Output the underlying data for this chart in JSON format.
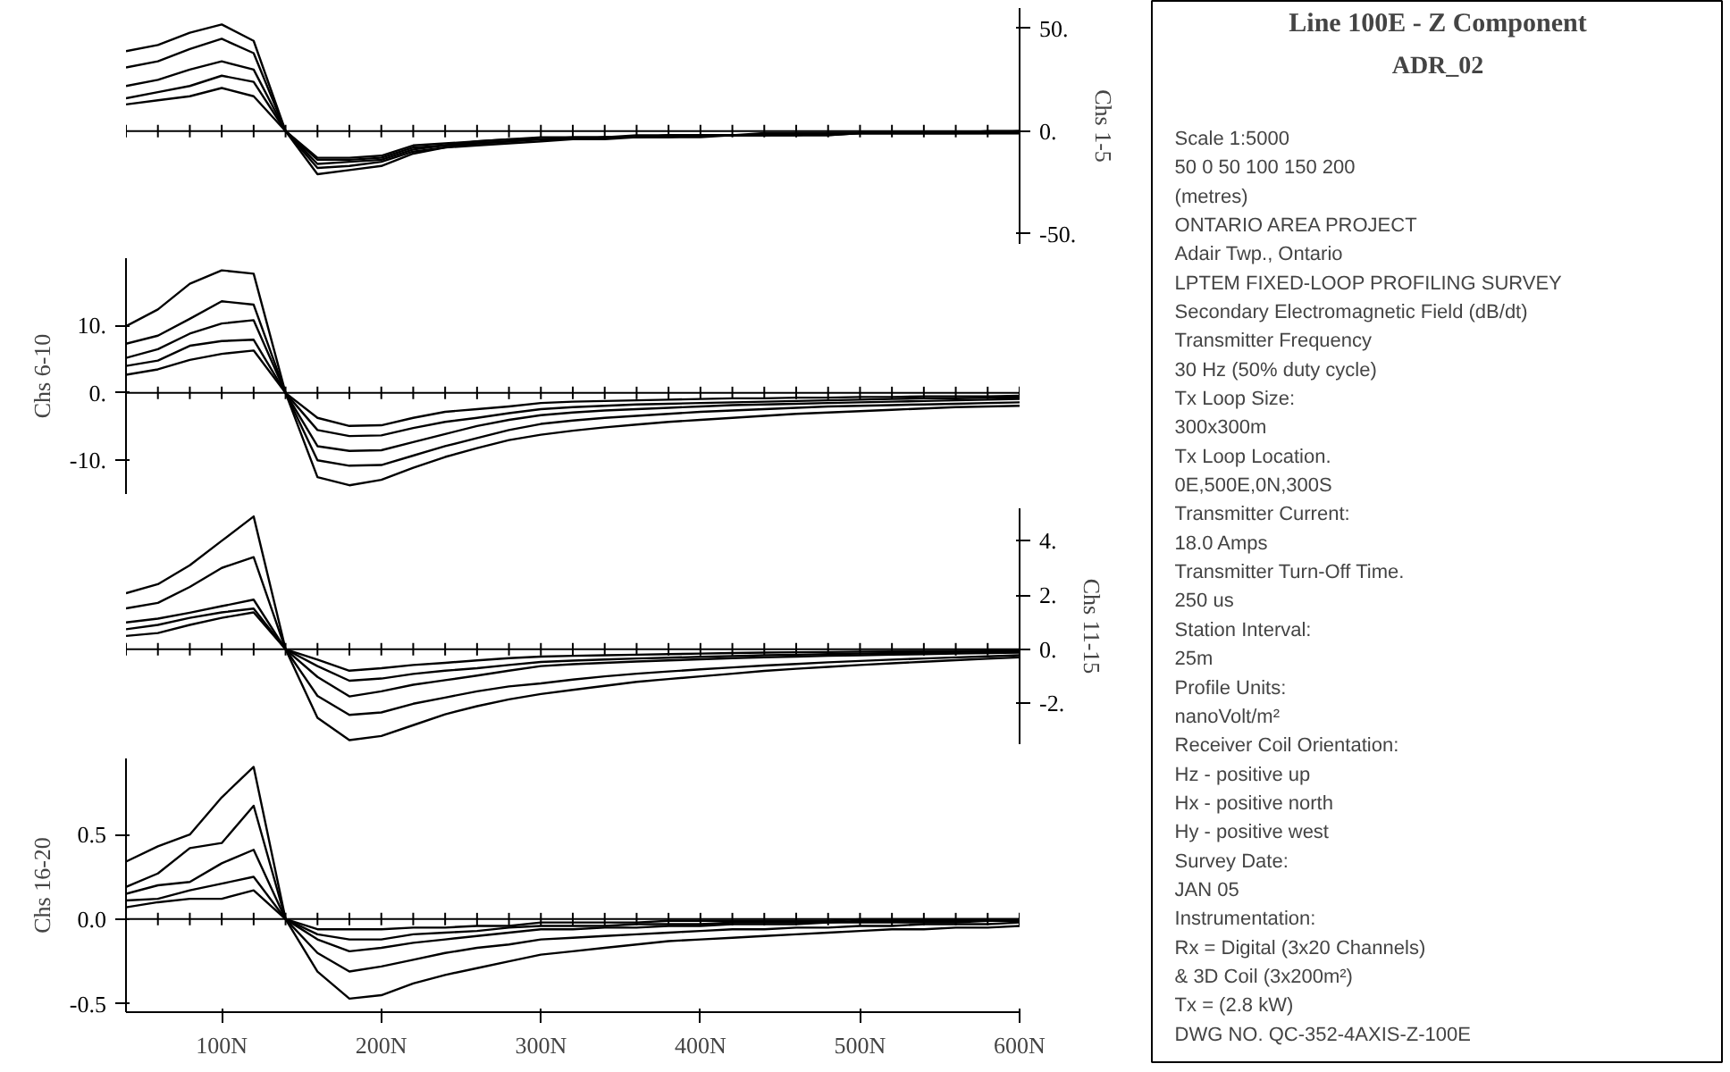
{
  "chart_data": [
    {
      "type": "line",
      "ylabel": "Chs 1-5",
      "x": [
        40,
        60,
        80,
        100,
        120,
        140,
        160,
        180,
        200,
        220,
        240,
        260,
        280,
        300,
        320,
        340,
        360,
        380,
        400,
        420,
        440,
        460,
        480,
        500,
        520,
        540,
        560,
        580,
        600
      ],
      "xlim": [
        40,
        600
      ],
      "ylim": [
        -55,
        60
      ],
      "yticks": [
        {
          "value": 50,
          "label": "50."
        },
        {
          "value": 0,
          "label": "0."
        },
        {
          "value": -50,
          "label": "-50."
        }
      ],
      "tick_labels": "y",
      "ref_lines": [
        {
          "axis": "y",
          "value": 0
        }
      ],
      "series": [
        {
          "color": "#000000",
          "values": [
            39,
            42,
            48,
            52,
            44,
            0,
            -21,
            -19,
            -17,
            -11,
            -8,
            -7,
            -6,
            -5,
            -4,
            -4,
            -3,
            -3,
            -3,
            -2,
            -2,
            -2,
            -2,
            -1,
            -1,
            -1,
            -1,
            -1,
            -1
          ]
        },
        {
          "color": "#000000",
          "values": [
            31,
            34,
            40,
            45,
            38,
            0,
            -18,
            -17,
            -15,
            -10,
            -8,
            -6,
            -5,
            -4,
            -4,
            -3,
            -3,
            -3,
            -2,
            -2,
            -2,
            -2,
            -2,
            -1,
            -1,
            -1,
            -1,
            -1,
            -1
          ]
        },
        {
          "color": "#000000",
          "values": [
            22,
            25,
            30,
            34,
            30,
            0,
            -16,
            -15,
            -14,
            -9,
            -7,
            -6,
            -5,
            -4,
            -4,
            -3,
            -3,
            -2,
            -2,
            -2,
            -2,
            -2,
            -1,
            -1,
            -1,
            -1,
            -1,
            -1,
            -1
          ]
        },
        {
          "color": "#000000",
          "values": [
            16,
            19,
            22,
            27,
            24,
            0,
            -14,
            -14,
            -13,
            -8,
            -7,
            -5,
            -4,
            -4,
            -3,
            -3,
            -3,
            -2,
            -2,
            -2,
            -2,
            -1,
            -1,
            -1,
            -1,
            -1,
            -1,
            -1,
            0
          ]
        },
        {
          "color": "#000000",
          "values": [
            13,
            15,
            17,
            21,
            17,
            0,
            -13,
            -13,
            -12,
            -7,
            -6,
            -5,
            -4,
            -3,
            -3,
            -3,
            -2,
            -2,
            -2,
            -2,
            -1,
            -1,
            -1,
            -1,
            -1,
            -1,
            -1,
            0,
            0
          ]
        }
      ]
    },
    {
      "type": "line",
      "ylabel": "Chs 6-10",
      "x": [
        40,
        60,
        80,
        100,
        120,
        140,
        160,
        180,
        200,
        220,
        240,
        260,
        280,
        300,
        320,
        340,
        360,
        380,
        400,
        420,
        440,
        460,
        480,
        500,
        520,
        540,
        560,
        580,
        600
      ],
      "xlim": [
        40,
        600
      ],
      "ylim": [
        -15,
        20
      ],
      "yticks": [
        {
          "value": 10,
          "label": "10."
        },
        {
          "value": 0,
          "label": "0."
        },
        {
          "value": -10,
          "label": "-10."
        }
      ],
      "tick_labels": "y",
      "ref_lines": [
        {
          "axis": "y",
          "value": 0
        }
      ],
      "series": [
        {
          "color": "#000000",
          "values": [
            9.9,
            12.4,
            16.2,
            18.2,
            17.7,
            0,
            -12.5,
            -13.7,
            -12.9,
            -11.1,
            -9.5,
            -8.2,
            -7,
            -6.2,
            -5.6,
            -5.1,
            -4.7,
            -4.3,
            -4,
            -3.7,
            -3.4,
            -3.1,
            -2.9,
            -2.7,
            -2.5,
            -2.3,
            -2.1,
            -2,
            -1.9
          ]
        },
        {
          "color": "#000000",
          "values": [
            7.3,
            8.5,
            11,
            13.6,
            13.1,
            0,
            -10,
            -10.8,
            -10.7,
            -9.3,
            -7.9,
            -6.7,
            -5.5,
            -4.6,
            -4.1,
            -3.7,
            -3.4,
            -3.1,
            -2.8,
            -2.6,
            -2.4,
            -2.2,
            -2,
            -1.9,
            -1.8,
            -1.7,
            -1.6,
            -1.5,
            -1.4
          ]
        },
        {
          "color": "#000000",
          "values": [
            5.2,
            6.5,
            8.8,
            10.3,
            10.8,
            0,
            -7.9,
            -8.6,
            -8.5,
            -7.3,
            -6.1,
            -4.9,
            -4,
            -3.3,
            -2.9,
            -2.6,
            -2.4,
            -2.2,
            -2,
            -1.8,
            -1.7,
            -1.6,
            -1.5,
            -1.4,
            -1.3,
            -1.2,
            -1.1,
            -1,
            -0.9
          ]
        },
        {
          "color": "#000000",
          "values": [
            4,
            4.8,
            7,
            7.7,
            7.9,
            0,
            -5.5,
            -6.4,
            -6.3,
            -5.2,
            -4.3,
            -3.7,
            -3,
            -2.4,
            -2.1,
            -1.9,
            -1.7,
            -1.6,
            -1.5,
            -1.4,
            -1.3,
            -1.2,
            -1.1,
            -1,
            -0.9,
            -0.8,
            -0.8,
            -0.7,
            -0.7
          ]
        },
        {
          "color": "#000000",
          "values": [
            2.7,
            3.5,
            4.9,
            5.8,
            6.3,
            0,
            -3.7,
            -4.9,
            -4.8,
            -3.7,
            -2.8,
            -2.4,
            -2,
            -1.5,
            -1.3,
            -1.2,
            -1.1,
            -1,
            -0.9,
            -0.8,
            -0.8,
            -0.7,
            -0.7,
            -0.6,
            -0.6,
            -0.5,
            -0.5,
            -0.5,
            -0.4
          ]
        }
      ]
    },
    {
      "type": "line",
      "ylabel": "Chs 11-15",
      "x": [
        40,
        60,
        80,
        100,
        120,
        140,
        160,
        180,
        200,
        220,
        240,
        260,
        280,
        300,
        320,
        340,
        360,
        380,
        400,
        420,
        440,
        460,
        480,
        500,
        520,
        540,
        560,
        580,
        600
      ],
      "xlim": [
        40,
        600
      ],
      "ylim": [
        -3.5,
        5.2
      ],
      "yticks": [
        {
          "value": 4,
          "label": "4."
        },
        {
          "value": 2,
          "label": "2."
        },
        {
          "value": 0,
          "label": "0."
        },
        {
          "value": -2,
          "label": "-2."
        }
      ],
      "tick_labels": "y",
      "ref_lines": [
        {
          "axis": "y",
          "value": 0
        }
      ],
      "series": [
        {
          "color": "#000000",
          "values": [
            2.07,
            2.4,
            3.1,
            4,
            4.9,
            0,
            -2.53,
            -3.35,
            -3.2,
            -2.8,
            -2.4,
            -2.1,
            -1.85,
            -1.65,
            -1.5,
            -1.35,
            -1.2,
            -1.1,
            -1,
            -0.9,
            -0.8,
            -0.72,
            -0.65,
            -0.58,
            -0.52,
            -0.46,
            -0.4,
            -0.35,
            -0.3
          ]
        },
        {
          "color": "#000000",
          "values": [
            1.51,
            1.71,
            2.3,
            3,
            3.4,
            0,
            -1.72,
            -2.42,
            -2.33,
            -2.01,
            -1.78,
            -1.55,
            -1.37,
            -1.26,
            -1.12,
            -1,
            -0.9,
            -0.82,
            -0.74,
            -0.67,
            -0.6,
            -0.54,
            -0.48,
            -0.43,
            -0.38,
            -0.34,
            -0.3,
            -0.26,
            -0.22
          ]
        },
        {
          "color": "#000000",
          "values": [
            0.99,
            1.13,
            1.35,
            1.59,
            1.83,
            0,
            -1.02,
            -1.74,
            -1.55,
            -1.31,
            -1.14,
            -0.97,
            -0.79,
            -0.62,
            -0.55,
            -0.5,
            -0.45,
            -0.41,
            -0.37,
            -0.33,
            -0.3,
            -0.27,
            -0.24,
            -0.22,
            -0.2,
            -0.18,
            -0.16,
            -0.14,
            -0.12
          ]
        },
        {
          "color": "#000000",
          "values": [
            0.74,
            0.9,
            1.16,
            1.36,
            1.5,
            0,
            -0.62,
            -1.16,
            -1.08,
            -0.91,
            -0.79,
            -0.7,
            -0.58,
            -0.47,
            -0.42,
            -0.38,
            -0.34,
            -0.31,
            -0.28,
            -0.25,
            -0.22,
            -0.2,
            -0.18,
            -0.16,
            -0.14,
            -0.12,
            -0.1,
            -0.09,
            -0.08
          ]
        },
        {
          "color": "#000000",
          "values": [
            0.49,
            0.6,
            0.9,
            1.16,
            1.36,
            0,
            -0.38,
            -0.79,
            -0.7,
            -0.58,
            -0.5,
            -0.41,
            -0.33,
            -0.27,
            -0.24,
            -0.22,
            -0.2,
            -0.18,
            -0.16,
            -0.14,
            -0.12,
            -0.11,
            -0.1,
            -0.09,
            -0.08,
            -0.07,
            -0.06,
            -0.05,
            -0.05
          ]
        }
      ]
    },
    {
      "type": "line",
      "ylabel": "Chs 16-20",
      "x": [
        40,
        60,
        80,
        100,
        120,
        140,
        160,
        180,
        200,
        220,
        240,
        260,
        280,
        300,
        320,
        340,
        360,
        380,
        400,
        420,
        440,
        460,
        480,
        500,
        520,
        540,
        560,
        580,
        600
      ],
      "xlim": [
        40,
        600
      ],
      "xticks": [
        {
          "value": 100,
          "label": "100N"
        },
        {
          "value": 200,
          "label": "200N"
        },
        {
          "value": 300,
          "label": "300N"
        },
        {
          "value": 400,
          "label": "400N"
        },
        {
          "value": 500,
          "label": "500N"
        },
        {
          "value": 600,
          "label": "600N"
        }
      ],
      "ylim": [
        -0.55,
        0.95
      ],
      "yticks": [
        {
          "value": 0.5,
          "label": "0.5"
        },
        {
          "value": 0,
          "label": "0.0"
        },
        {
          "value": -0.5,
          "label": "-0.5"
        }
      ],
      "ref_lines": [
        {
          "axis": "y",
          "value": 0
        }
      ],
      "series": [
        {
          "color": "#000000",
          "values": [
            0.34,
            0.43,
            0.5,
            0.72,
            0.9,
            0,
            -0.31,
            -0.47,
            -0.45,
            -0.38,
            -0.33,
            -0.29,
            -0.25,
            -0.21,
            -0.19,
            -0.17,
            -0.15,
            -0.13,
            -0.12,
            -0.11,
            -0.1,
            -0.09,
            -0.08,
            -0.07,
            -0.06,
            -0.06,
            -0.05,
            -0.05,
            -0.04
          ]
        },
        {
          "color": "#000000",
          "values": [
            0.19,
            0.27,
            0.42,
            0.45,
            0.67,
            0,
            -0.2,
            -0.31,
            -0.28,
            -0.24,
            -0.2,
            -0.17,
            -0.15,
            -0.12,
            -0.11,
            -0.1,
            -0.09,
            -0.08,
            -0.07,
            -0.06,
            -0.06,
            -0.05,
            -0.05,
            -0.04,
            -0.04,
            -0.03,
            -0.03,
            -0.03,
            -0.02
          ]
        },
        {
          "color": "#000000",
          "values": [
            0.15,
            0.2,
            0.22,
            0.33,
            0.41,
            0,
            -0.12,
            -0.19,
            -0.17,
            -0.14,
            -0.12,
            -0.1,
            -0.08,
            -0.06,
            -0.06,
            -0.05,
            -0.05,
            -0.04,
            -0.04,
            -0.03,
            -0.03,
            -0.03,
            -0.02,
            -0.02,
            -0.02,
            -0.02,
            -0.02,
            -0.01,
            -0.01
          ]
        },
        {
          "color": "#000000",
          "values": [
            0.11,
            0.12,
            0.17,
            0.21,
            0.25,
            0,
            -0.09,
            -0.12,
            -0.12,
            -0.09,
            -0.08,
            -0.07,
            -0.05,
            -0.04,
            -0.04,
            -0.04,
            -0.03,
            -0.03,
            -0.03,
            -0.02,
            -0.02,
            -0.02,
            -0.02,
            -0.01,
            -0.01,
            -0.01,
            -0.01,
            -0.01,
            -0.01
          ]
        },
        {
          "color": "#000000",
          "values": [
            0.07,
            0.1,
            0.12,
            0.12,
            0.17,
            0,
            -0.06,
            -0.06,
            -0.06,
            -0.05,
            -0.05,
            -0.04,
            -0.04,
            -0.02,
            -0.02,
            -0.02,
            -0.02,
            -0.01,
            -0.01,
            -0.01,
            -0.01,
            -0.01,
            -0.01,
            0,
            0,
            0,
            0,
            0,
            0
          ]
        }
      ]
    },
    {
      "type": "other",
      "title": "Line 100E - Z Component",
      "subtitle": "ADR_02",
      "annotations": [
        "Scale 1:5000",
        "50    0    50    100    150    200",
        "(metres)",
        "ONTARIO AREA PROJECT",
        "Adair Twp., Ontario",
        "LPTEM FIXED-LOOP PROFILING SURVEY",
        "Secondary Electromagnetic Field (dB/dt)",
        "Transmitter Frequency",
        "30 Hz (50% duty cycle)",
        "Tx Loop Size:",
        "300x300m",
        "Tx Loop Location.",
        "0E,500E,0N,300S",
        "Transmitter Current:",
        "18.0 Amps",
        "Transmitter Turn-Off Time.",
        "250 us",
        "Station Interval:",
        "25m",
        "Profile Units:",
        "nanoVolt/m²",
        "Receiver Coil Orientation:",
        "Hz - positive up",
        "Hx - positive north",
        "Hy - positive west",
        "Survey Date:",
        "JAN 05",
        "Instrumentation:",
        "Rx = Digital (3x20 Channels)",
        "& 3D Coil (3x200m²)",
        "Tx = (2.8 kW)",
        "DWG NO. QC-352-4AXIS-Z-100E"
      ]
    }
  ]
}
